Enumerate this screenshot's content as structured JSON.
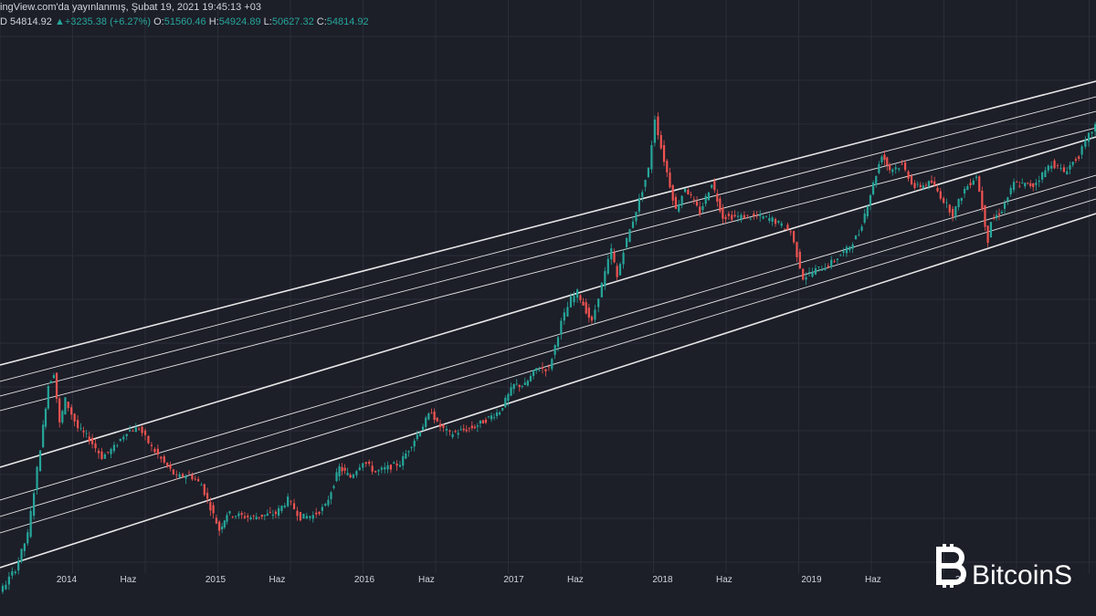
{
  "header": {
    "publish_line": "ingView.com'da yayınlanmış, Şubat 19, 2021 19:45:13 +03",
    "interval_suffix": "D",
    "last_price": "54814.92",
    "change": "+3235.38 (+6.27%)",
    "open_label": "O:",
    "open": "51560.46",
    "high_label": "H:",
    "high": "54924.89",
    "low_label": "L:",
    "low": "50627.32",
    "close_label": "C:",
    "close": "54814.92",
    "change_icon": "triangle-up-icon"
  },
  "watermark": {
    "text": "BitcoinS",
    "icon": "bitcoin-logo-icon"
  },
  "colors": {
    "background": "#1c1e28",
    "grid": "#2a2e39",
    "channel_line": "#e6e6e6",
    "candle_up": "#26a69a",
    "candle_down": "#ef5350",
    "text": "#d1d4dc"
  },
  "chart_data": {
    "type": "line",
    "scale": "log",
    "grid": true,
    "x_tick_labels": [
      "2014",
      "Haz",
      "2015",
      "Haz",
      "2016",
      "Haz",
      "2017",
      "Haz",
      "2018",
      "Haz",
      "2019",
      "Haz",
      "20"
    ],
    "x_tick_dates": [
      "2014-01-01",
      "2014-06-01",
      "2015-01-01",
      "2015-06-01",
      "2016-01-01",
      "2016-06-01",
      "2017-01-01",
      "2017-06-01",
      "2018-01-01",
      "2018-06-01",
      "2019-01-01",
      "2019-06-01",
      "2020-01-01"
    ],
    "series": [
      {
        "x": [
          "2013-04-01",
          "2013-05-01",
          "2013-07-01",
          "2013-08-01",
          "2013-09-01",
          "2013-10-01",
          "2013-11-01",
          "2013-11-20",
          "2013-12-04",
          "2013-12-18",
          "2014-01-01",
          "2014-02-01",
          "2014-03-01",
          "2014-04-01",
          "2014-05-01",
          "2014-06-01",
          "2014-07-01",
          "2014-08-01",
          "2014-09-01",
          "2014-10-01",
          "2014-11-01",
          "2014-12-01",
          "2015-01-14",
          "2015-02-01",
          "2015-04-01",
          "2015-06-01",
          "2015-07-01",
          "2015-08-01",
          "2015-09-01",
          "2015-10-01",
          "2015-11-04",
          "2015-12-01",
          "2016-01-01",
          "2016-02-01",
          "2016-04-01",
          "2016-06-17",
          "2016-07-01",
          "2016-08-01",
          "2016-10-01",
          "2016-12-01",
          "2017-01-05",
          "2017-02-01",
          "2017-03-01",
          "2017-04-01",
          "2017-05-01",
          "2017-05-25",
          "2017-06-10",
          "2017-07-15",
          "2017-08-01",
          "2017-09-01",
          "2017-09-15",
          "2017-10-01",
          "2017-11-01",
          "2017-12-01",
          "2017-12-17",
          "2018-01-01",
          "2018-02-06",
          "2018-03-01",
          "2018-04-06",
          "2018-05-05",
          "2018-06-01",
          "2018-07-01",
          "2018-08-01",
          "2018-09-01",
          "2018-10-01",
          "2018-11-15",
          "2018-12-15",
          "2019-01-15",
          "2019-02-15",
          "2019-04-01",
          "2019-05-01",
          "2019-06-26",
          "2019-07-15",
          "2019-08-15",
          "2019-09-15",
          "2019-10-26",
          "2019-12-17",
          "2020-01-15",
          "2020-02-13",
          "2020-03-12",
          "2020-03-20",
          "2020-04-15",
          "2020-05-15",
          "2020-07-01",
          "2020-08-15",
          "2020-09-15",
          "2020-10-21",
          "2020-11-15",
          "2020-12-16",
          "2021-01-08",
          "2021-01-25",
          "2021-02-19"
        ],
        "y": [
          110,
          120,
          90,
          105,
          130,
          190,
          500,
          1000,
          1150,
          650,
          850,
          620,
          550,
          450,
          500,
          600,
          620,
          500,
          420,
          360,
          370,
          330,
          200,
          240,
          230,
          240,
          280,
          230,
          235,
          260,
          400,
          360,
          430,
          380,
          420,
          750,
          650,
          580,
          630,
          750,
          1000,
          1000,
          1200,
          1200,
          2000,
          2600,
          2800,
          2000,
          2700,
          4500,
          3300,
          4500,
          7000,
          11000,
          19500,
          14000,
          7000,
          9000,
          6800,
          9500,
          6500,
          6500,
          6500,
          6500,
          6300,
          5500,
          3300,
          3600,
          3800,
          4500,
          5400,
          13000,
          11000,
          11500,
          9000,
          9500,
          6700,
          8800,
          10300,
          5000,
          6200,
          7000,
          9400,
          9200,
          11800,
          10700,
          12800,
          16000,
          20000,
          40000,
          32000,
          54814.92
        ]
      }
    ]
  }
}
